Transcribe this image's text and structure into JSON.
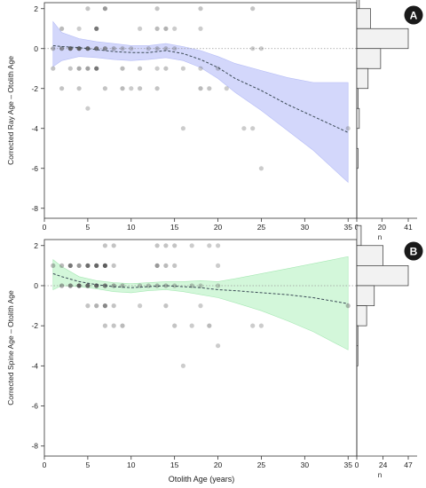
{
  "figure": {
    "xlabel": "Otolith Age (years)",
    "n_label": "n",
    "zero_line": "dotted",
    "point_color": "#555555",
    "panel_order": [
      "A",
      "B"
    ]
  },
  "chart_data": [
    {
      "panel_label": "A",
      "type": "scatter",
      "ylabel": "Corrected Ray Age – Otolith Age",
      "xlim": [
        0,
        36
      ],
      "ylim": [
        -8.5,
        2.3
      ],
      "x_ticks": [
        "0",
        "5",
        "10",
        "15",
        "20",
        "25",
        "30",
        "35"
      ],
      "y_ticks": [
        "2",
        "0",
        "-2",
        "-4",
        "-6",
        "-8"
      ],
      "band_color": "#d3d7fb",
      "band_edge_color": "#b6bdf6",
      "hist_ticks": [
        "0",
        "20",
        "41"
      ],
      "hist_max": 41,
      "hist": [
        {
          "bin": 2,
          "n": 2
        },
        {
          "bin": 1,
          "n": 11
        },
        {
          "bin": 0,
          "n": 41
        },
        {
          "bin": -1,
          "n": 19
        },
        {
          "bin": -2,
          "n": 9
        },
        {
          "bin": -3,
          "n": 1
        },
        {
          "bin": -4,
          "n": 2
        },
        {
          "bin": -5,
          "n": 0
        },
        {
          "bin": -6,
          "n": 1
        }
      ],
      "points": [
        [
          1,
          0,
          0.4
        ],
        [
          2,
          0,
          0.6
        ],
        [
          3,
          0,
          0.9
        ],
        [
          4,
          0,
          0.95
        ],
        [
          5,
          0,
          0.9
        ],
        [
          6,
          0,
          0.8
        ],
        [
          7,
          0,
          0.6
        ],
        [
          8,
          0,
          0.4
        ],
        [
          9,
          0,
          0.35
        ],
        [
          10,
          0,
          0.3
        ],
        [
          12,
          0,
          0.3
        ],
        [
          13,
          0,
          0.35
        ],
        [
          14,
          0,
          0.35
        ],
        [
          15,
          0,
          0.3
        ],
        [
          2,
          1,
          0.4
        ],
        [
          4,
          1,
          0.3
        ],
        [
          6,
          1,
          0.8
        ],
        [
          11,
          1,
          0.3
        ],
        [
          13,
          1,
          0.4
        ],
        [
          14,
          1,
          0.45
        ],
        [
          15,
          1,
          0.3
        ],
        [
          18,
          1,
          0.3
        ],
        [
          5,
          2,
          0.35
        ],
        [
          7,
          2,
          0.6
        ],
        [
          13,
          2,
          0.35
        ],
        [
          18,
          2,
          0.35
        ],
        [
          24,
          2,
          0.35
        ],
        [
          1,
          -1,
          0.35
        ],
        [
          3,
          -1,
          0.35
        ],
        [
          4,
          -1,
          0.5
        ],
        [
          5,
          -1,
          0.55
        ],
        [
          6,
          -1,
          0.8
        ],
        [
          9,
          -1,
          0.4
        ],
        [
          11,
          -1,
          0.35
        ],
        [
          13,
          -1,
          0.3
        ],
        [
          14,
          -1,
          0.35
        ],
        [
          16,
          -1,
          0.3
        ],
        [
          18,
          -1,
          0.3
        ],
        [
          20,
          -1,
          0.3
        ],
        [
          2,
          -2,
          0.35
        ],
        [
          4,
          -2,
          0.35
        ],
        [
          7,
          -2,
          0.35
        ],
        [
          9,
          -2,
          0.4
        ],
        [
          10,
          -2,
          0.3
        ],
        [
          11,
          -2,
          0.35
        ],
        [
          13,
          -2,
          0.35
        ],
        [
          18,
          -2,
          0.4
        ],
        [
          19,
          -2,
          0.35
        ],
        [
          21,
          -2,
          0.3
        ],
        [
          5,
          -3,
          0.3
        ],
        [
          16,
          -4,
          0.3
        ],
        [
          23,
          -4,
          0.3
        ],
        [
          24,
          -4,
          0.3
        ],
        [
          35,
          -4,
          0.3
        ],
        [
          25,
          -6,
          0.3
        ],
        [
          25,
          0,
          0.3
        ],
        [
          24,
          0,
          0.3
        ]
      ],
      "trend": {
        "x": [
          1,
          2,
          4,
          6,
          8,
          10,
          12,
          14,
          16,
          18,
          20,
          22,
          25,
          28,
          31,
          35
        ],
        "fit": [
          0.15,
          0.1,
          0.05,
          -0.05,
          -0.15,
          -0.2,
          -0.2,
          -0.1,
          -0.25,
          -0.55,
          -0.95,
          -1.5,
          -2.1,
          -2.8,
          -3.4,
          -4.2
        ],
        "lo": [
          -0.9,
          -0.6,
          -0.4,
          -0.45,
          -0.55,
          -0.6,
          -0.55,
          -0.45,
          -0.6,
          -0.95,
          -1.5,
          -2.2,
          -3.1,
          -4.1,
          -5.1,
          -6.7
        ],
        "hi": [
          1.35,
          0.8,
          0.5,
          0.35,
          0.25,
          0.15,
          0.15,
          0.25,
          0.1,
          -0.1,
          -0.4,
          -0.75,
          -1.1,
          -1.45,
          -1.7,
          -1.7
        ]
      }
    },
    {
      "panel_label": "B",
      "type": "scatter",
      "ylabel": "Corrected Spine Age – Otolith Age",
      "xlim": [
        0,
        36
      ],
      "ylim": [
        -8.5,
        2.3
      ],
      "x_ticks": [
        "0",
        "5",
        "10",
        "15",
        "20",
        "25",
        "30",
        "35"
      ],
      "y_ticks": [
        "2",
        "0",
        "-2",
        "-4",
        "-6",
        "-8"
      ],
      "band_color": "#d3f7da",
      "band_edge_color": "#a7e8b4",
      "hist_ticks": [
        "0",
        "24",
        "47"
      ],
      "hist_max": 47,
      "hist": [
        {
          "bin": 2,
          "n": 4
        },
        {
          "bin": 1,
          "n": 24
        },
        {
          "bin": 0,
          "n": 47
        },
        {
          "bin": -1,
          "n": 16
        },
        {
          "bin": -2,
          "n": 9
        },
        {
          "bin": -3,
          "n": 1
        },
        {
          "bin": -4,
          "n": 1
        }
      ],
      "points": [
        [
          1,
          1,
          0.4
        ],
        [
          2,
          1,
          0.4
        ],
        [
          3,
          1,
          0.8
        ],
        [
          4,
          1,
          0.6
        ],
        [
          5,
          1,
          0.85
        ],
        [
          6,
          1,
          0.9
        ],
        [
          7,
          1,
          0.95
        ],
        [
          8,
          1,
          0.35
        ],
        [
          13,
          1,
          0.6
        ],
        [
          14,
          1,
          0.4
        ],
        [
          15,
          1,
          0.35
        ],
        [
          20,
          1,
          0.3
        ],
        [
          2,
          0,
          0.5
        ],
        [
          3,
          0,
          0.7
        ],
        [
          4,
          0,
          0.95
        ],
        [
          5,
          0,
          0.9
        ],
        [
          6,
          0,
          0.9
        ],
        [
          7,
          0,
          0.75
        ],
        [
          8,
          0,
          0.5
        ],
        [
          9,
          0,
          0.4
        ],
        [
          11,
          0,
          0.35
        ],
        [
          12,
          0,
          0.35
        ],
        [
          13,
          0,
          0.4
        ],
        [
          14,
          0,
          0.4
        ],
        [
          15,
          0,
          0.35
        ],
        [
          17,
          0,
          0.35
        ],
        [
          18,
          0,
          0.3
        ],
        [
          20,
          0,
          0.3
        ],
        [
          5,
          -1,
          0.35
        ],
        [
          6,
          -1,
          0.45
        ],
        [
          7,
          -1,
          0.7
        ],
        [
          8,
          -1,
          0.35
        ],
        [
          11,
          -1,
          0.3
        ],
        [
          14,
          -1,
          0.35
        ],
        [
          18,
          -1,
          0.3
        ],
        [
          35,
          -1,
          0.4
        ],
        [
          7,
          2,
          0.35
        ],
        [
          8,
          2,
          0.35
        ],
        [
          13,
          2,
          0.35
        ],
        [
          14,
          2,
          0.35
        ],
        [
          15,
          2,
          0.35
        ],
        [
          17,
          2,
          0.3
        ],
        [
          19,
          2,
          0.3
        ],
        [
          20,
          2,
          0.3
        ],
        [
          7,
          -2,
          0.35
        ],
        [
          8,
          -2,
          0.35
        ],
        [
          9,
          -2,
          0.4
        ],
        [
          15,
          -2,
          0.35
        ],
        [
          17,
          -2,
          0.3
        ],
        [
          19,
          -2,
          0.4
        ],
        [
          24,
          -2,
          0.3
        ],
        [
          25,
          -2,
          0.3
        ],
        [
          20,
          -3,
          0.3
        ],
        [
          16,
          -4,
          0.3
        ]
      ],
      "trend": {
        "x": [
          1,
          2,
          4,
          6,
          8,
          10,
          12,
          14,
          16,
          18,
          20,
          22,
          25,
          28,
          31,
          35
        ],
        "fit": [
          0.6,
          0.45,
          0.2,
          0.05,
          -0.05,
          -0.1,
          -0.05,
          0.0,
          -0.05,
          -0.1,
          -0.2,
          -0.25,
          -0.35,
          -0.45,
          -0.6,
          -0.9
        ],
        "lo": [
          -0.2,
          0.0,
          -0.05,
          -0.15,
          -0.3,
          -0.35,
          -0.25,
          -0.2,
          -0.3,
          -0.45,
          -0.6,
          -0.85,
          -1.25,
          -1.75,
          -2.3,
          -3.2
        ],
        "hi": [
          1.3,
          0.95,
          0.45,
          0.25,
          0.15,
          0.1,
          0.15,
          0.2,
          0.2,
          0.25,
          0.2,
          0.35,
          0.6,
          0.85,
          1.1,
          1.45
        ]
      }
    }
  ]
}
